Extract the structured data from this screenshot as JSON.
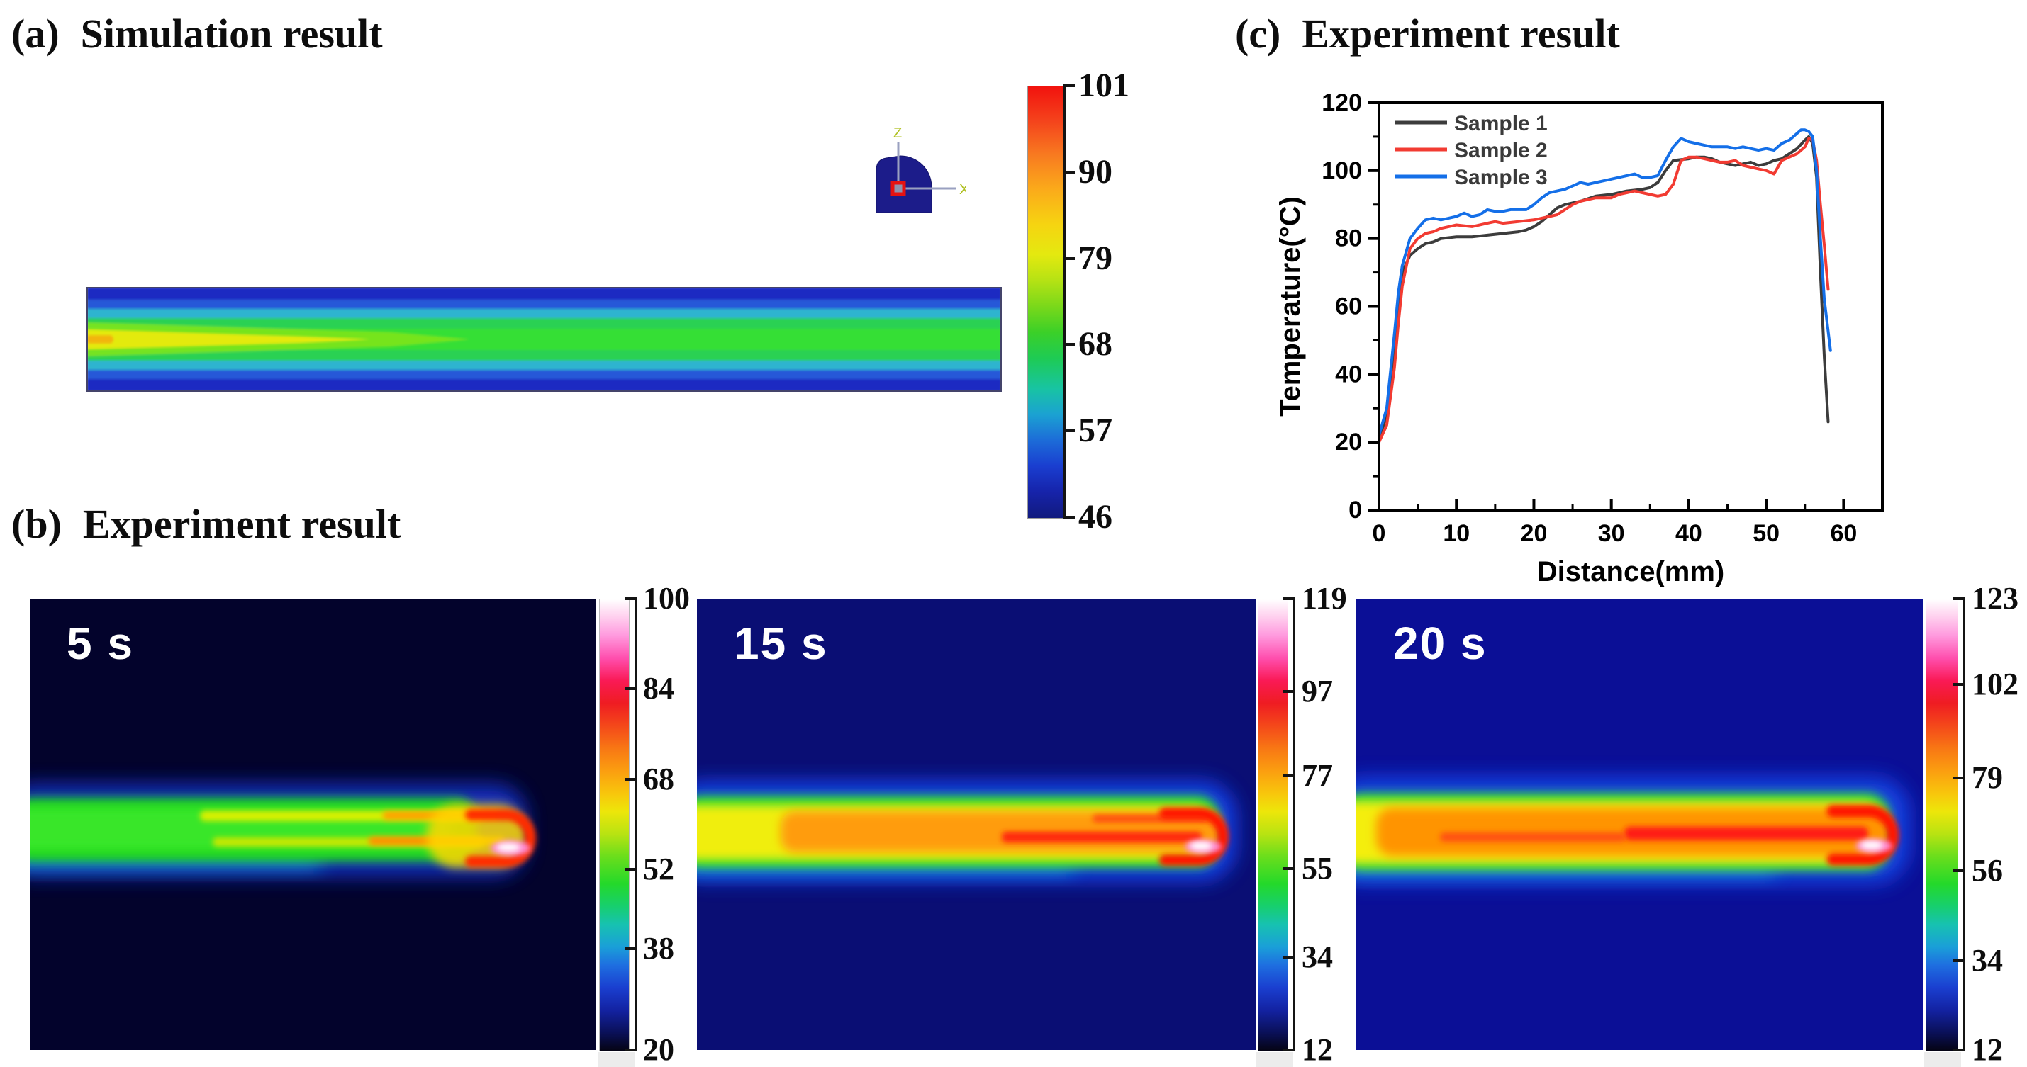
{
  "figure": {
    "panel_a": {
      "tag": "(a)",
      "title": "Simulation result"
    },
    "panel_b": {
      "tag": "(b)",
      "title": "Experiment result"
    },
    "panel_c": {
      "tag": "(c)",
      "title": "Experiment result"
    }
  },
  "simulation": {
    "colorbar": {
      "ticks": [
        101,
        90,
        79,
        68,
        57,
        46
      ],
      "max": 101,
      "min": 46
    },
    "axis_triad": {
      "vertical": "Z",
      "horizontal": "X"
    }
  },
  "thermal_images": [
    {
      "time_label": "5 s",
      "background": "#03032c",
      "colorbar": {
        "ticks": [
          100,
          84,
          68,
          52,
          38,
          20
        ],
        "max": 100,
        "min": 20
      }
    },
    {
      "time_label": "15 s",
      "background": "#0a0e74",
      "colorbar": {
        "ticks": [
          119,
          97,
          77,
          55,
          34,
          12
        ],
        "max": 119,
        "min": 12
      }
    },
    {
      "time_label": "20 s",
      "background": "#0b0f96",
      "colorbar": {
        "ticks": [
          123,
          102,
          79,
          56,
          34,
          12
        ],
        "max": 123,
        "min": 12
      }
    }
  ],
  "chart_data": {
    "type": "line",
    "title": "Experiment result",
    "xlabel": "Distance(mm)",
    "ylabel": "Temperature(°C)",
    "xlim": [
      0,
      65
    ],
    "ylim": [
      0,
      120
    ],
    "xticks": [
      0,
      10,
      20,
      30,
      40,
      50,
      60
    ],
    "yticks": [
      0,
      20,
      40,
      60,
      80,
      100,
      120
    ],
    "x_minor_step": 5,
    "y_minor_step": 10,
    "grid": false,
    "legend_position": "top-left",
    "series": [
      {
        "name": "Sample 1",
        "color": "#3c3c3c",
        "points": [
          [
            0,
            21
          ],
          [
            1,
            28
          ],
          [
            2,
            48
          ],
          [
            2.5,
            62
          ],
          [
            3,
            70
          ],
          [
            4,
            75
          ],
          [
            5,
            77
          ],
          [
            6,
            78.5
          ],
          [
            7,
            79
          ],
          [
            8,
            80
          ],
          [
            10,
            80.5
          ],
          [
            12,
            80.5
          ],
          [
            14,
            81
          ],
          [
            16,
            81.5
          ],
          [
            18,
            82
          ],
          [
            19,
            82.5
          ],
          [
            20,
            83.5
          ],
          [
            21,
            85
          ],
          [
            22,
            87
          ],
          [
            23,
            89
          ],
          [
            24,
            90
          ],
          [
            26,
            91
          ],
          [
            28,
            92.5
          ],
          [
            30,
            93
          ],
          [
            32,
            94
          ],
          [
            34,
            94.5
          ],
          [
            35,
            95
          ],
          [
            36,
            96.5
          ],
          [
            37,
            100
          ],
          [
            38,
            103
          ],
          [
            40,
            103.5
          ],
          [
            41,
            104
          ],
          [
            42,
            104
          ],
          [
            43,
            103.5
          ],
          [
            44,
            102.5
          ],
          [
            45,
            102
          ],
          [
            46,
            101.5
          ],
          [
            47,
            102
          ],
          [
            48,
            102.5
          ],
          [
            49,
            101.5
          ],
          [
            50,
            102
          ],
          [
            51,
            103
          ],
          [
            52,
            103.5
          ],
          [
            53,
            105
          ],
          [
            54,
            106.5
          ],
          [
            55,
            109
          ],
          [
            55.5,
            110
          ],
          [
            56,
            108
          ],
          [
            56.5,
            98
          ],
          [
            57,
            70
          ],
          [
            57.5,
            45
          ],
          [
            58,
            26
          ]
        ]
      },
      {
        "name": "Sample 2",
        "color": "#f23b32",
        "points": [
          [
            0,
            20
          ],
          [
            1,
            25
          ],
          [
            2,
            42
          ],
          [
            2.5,
            55
          ],
          [
            3,
            66
          ],
          [
            4,
            77
          ],
          [
            5,
            80
          ],
          [
            6,
            81.5
          ],
          [
            7,
            82
          ],
          [
            8,
            83
          ],
          [
            9,
            83.5
          ],
          [
            10,
            84
          ],
          [
            12,
            83.5
          ],
          [
            14,
            84.5
          ],
          [
            15,
            85
          ],
          [
            16,
            84.5
          ],
          [
            18,
            85
          ],
          [
            20,
            85.5
          ],
          [
            21,
            86
          ],
          [
            22,
            86.5
          ],
          [
            23,
            87
          ],
          [
            24,
            88.5
          ],
          [
            25,
            90
          ],
          [
            26,
            91
          ],
          [
            27,
            91.5
          ],
          [
            28,
            92
          ],
          [
            30,
            92
          ],
          [
            31,
            93
          ],
          [
            32,
            93.5
          ],
          [
            33,
            94
          ],
          [
            34,
            93.5
          ],
          [
            36,
            92.5
          ],
          [
            37,
            93
          ],
          [
            38,
            96
          ],
          [
            39,
            103
          ],
          [
            40,
            104
          ],
          [
            41,
            104
          ],
          [
            42,
            103.5
          ],
          [
            43,
            103
          ],
          [
            44,
            102.5
          ],
          [
            45,
            102.5
          ],
          [
            46,
            103
          ],
          [
            47,
            101.5
          ],
          [
            48,
            101
          ],
          [
            49,
            100.5
          ],
          [
            50,
            100
          ],
          [
            51,
            99
          ],
          [
            52,
            103
          ],
          [
            53,
            104
          ],
          [
            54,
            105
          ],
          [
            55,
            107
          ],
          [
            55.5,
            109.5
          ],
          [
            56,
            109
          ],
          [
            56.5,
            103
          ],
          [
            57,
            90
          ],
          [
            57.5,
            78
          ],
          [
            58,
            65
          ]
        ]
      },
      {
        "name": "Sample 3",
        "color": "#146fe8",
        "points": [
          [
            0,
            22
          ],
          [
            1,
            30
          ],
          [
            2,
            52
          ],
          [
            2.5,
            64
          ],
          [
            3,
            72
          ],
          [
            4,
            80
          ],
          [
            5,
            83
          ],
          [
            6,
            85.5
          ],
          [
            7,
            86
          ],
          [
            8,
            85.5
          ],
          [
            9,
            86
          ],
          [
            10,
            86.5
          ],
          [
            11,
            87.5
          ],
          [
            12,
            86.5
          ],
          [
            13,
            87
          ],
          [
            14,
            88.5
          ],
          [
            15,
            88
          ],
          [
            16,
            88
          ],
          [
            17,
            88.5
          ],
          [
            18,
            88.5
          ],
          [
            19,
            88.5
          ],
          [
            20,
            90
          ],
          [
            21,
            92
          ],
          [
            22,
            93.5
          ],
          [
            23,
            94
          ],
          [
            24,
            94.5
          ],
          [
            25,
            95.5
          ],
          [
            26,
            96.5
          ],
          [
            27,
            96
          ],
          [
            28,
            96.5
          ],
          [
            29,
            97
          ],
          [
            30,
            97.5
          ],
          [
            31,
            98
          ],
          [
            32,
            98.5
          ],
          [
            33,
            99
          ],
          [
            34,
            98
          ],
          [
            35,
            98
          ],
          [
            36,
            98.5
          ],
          [
            37,
            103
          ],
          [
            38,
            107
          ],
          [
            39,
            109.5
          ],
          [
            40,
            108.5
          ],
          [
            41,
            108
          ],
          [
            42,
            107.5
          ],
          [
            43,
            107
          ],
          [
            44,
            107
          ],
          [
            45,
            107
          ],
          [
            46,
            106.5
          ],
          [
            47,
            107
          ],
          [
            48,
            106.5
          ],
          [
            49,
            106
          ],
          [
            50,
            106.5
          ],
          [
            51,
            106
          ],
          [
            52,
            108
          ],
          [
            53,
            109
          ],
          [
            54,
            111
          ],
          [
            54.5,
            112
          ],
          [
            55,
            112
          ],
          [
            55.5,
            111.5
          ],
          [
            56,
            110
          ],
          [
            56.5,
            100
          ],
          [
            57,
            80
          ],
          [
            57.5,
            62
          ],
          [
            58.3,
            47
          ]
        ]
      }
    ]
  }
}
